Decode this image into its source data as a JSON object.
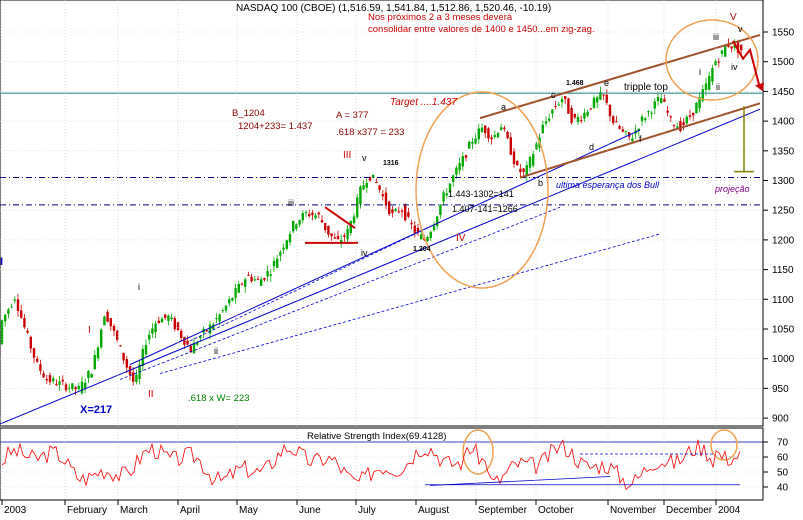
{
  "chart_data": [
    {
      "type": "candlestick",
      "title": "NASDAQ 100 (CBOE) (1,516.59, 1,541.84, 1,512.86, 1,520.46, -10.19)",
      "x_labels": [
        "2003",
        "February",
        "March",
        "April",
        "May",
        "June",
        "July",
        "August",
        "September",
        "October",
        "November",
        "December",
        "2004"
      ],
      "ylim": [
        860,
        1580
      ],
      "y_ticks": [
        900,
        950,
        1000,
        1050,
        1100,
        1150,
        1200,
        1250,
        1300,
        1350,
        1400,
        1450,
        1500,
        1550
      ],
      "path_anchors": [
        [
          0,
          990
        ],
        [
          4,
          1060
        ],
        [
          18,
          1105
        ],
        [
          28,
          1050
        ],
        [
          40,
          990
        ],
        [
          50,
          965
        ],
        [
          68,
          955
        ],
        [
          82,
          948
        ],
        [
          96,
          985
        ],
        [
          108,
          1080
        ],
        [
          118,
          1040
        ],
        [
          128,
          995
        ],
        [
          138,
          955
        ],
        [
          150,
          1035
        ],
        [
          160,
          1065
        ],
        [
          172,
          1070
        ],
        [
          184,
          1040
        ],
        [
          194,
          1015
        ],
        [
          202,
          1035
        ],
        [
          214,
          1055
        ],
        [
          226,
          1080
        ],
        [
          238,
          1110
        ],
        [
          250,
          1140
        ],
        [
          262,
          1130
        ],
        [
          274,
          1150
        ],
        [
          286,
          1190
        ],
        [
          298,
          1230
        ],
        [
          310,
          1245
        ],
        [
          322,
          1240
        ],
        [
          330,
          1215
        ],
        [
          340,
          1195
        ],
        [
          350,
          1210
        ],
        [
          358,
          1250
        ],
        [
          364,
          1285
        ],
        [
          372,
          1310
        ],
        [
          380,
          1295
        ],
        [
          388,
          1265
        ],
        [
          396,
          1240
        ],
        [
          404,
          1255
        ],
        [
          412,
          1230
        ],
        [
          420,
          1210
        ],
        [
          428,
          1200
        ],
        [
          436,
          1225
        ],
        [
          446,
          1270
        ],
        [
          456,
          1305
        ],
        [
          466,
          1335
        ],
        [
          476,
          1370
        ],
        [
          486,
          1390
        ],
        [
          496,
          1370
        ],
        [
          504,
          1395
        ],
        [
          512,
          1360
        ],
        [
          520,
          1320
        ],
        [
          528,
          1310
        ],
        [
          536,
          1345
        ],
        [
          546,
          1390
        ],
        [
          556,
          1420
        ],
        [
          566,
          1440
        ],
        [
          576,
          1400
        ],
        [
          586,
          1410
        ],
        [
          596,
          1430
        ],
        [
          606,
          1445
        ],
        [
          616,
          1400
        ],
        [
          626,
          1380
        ],
        [
          634,
          1370
        ],
        [
          644,
          1400
        ],
        [
          654,
          1420
        ],
        [
          664,
          1440
        ],
        [
          674,
          1400
        ],
        [
          684,
          1390
        ],
        [
          694,
          1410
        ],
        [
          704,
          1440
        ],
        [
          712,
          1470
        ],
        [
          718,
          1500
        ],
        [
          724,
          1510
        ],
        [
          730,
          1530
        ],
        [
          738,
          1525
        ],
        [
          742,
          1520
        ]
      ],
      "annotations": {
        "note_line1": "Nos próximos 2 a 3 meses deverá",
        "note_line2": "consolidar entre valores de 1400 e 1450...em zig-zag.",
        "b_label": "B_1204",
        "b_calc": "1204+233= 1.437",
        "a_label": "A = 377",
        "a_calc": ".618 x377 = 233",
        "target": "Target ....1.437",
        "triple_top": "tripple top",
        "top_1468": "1.468",
        "calc_141": "1.443-1302=141",
        "calc_1266": "1.407-141=1266",
        "bull_text": "ultima esperança dos Bull",
        "projecao": "projeção",
        "w_calc": ".618 x W= 223",
        "x_label": "X=217",
        "low_1204": "1.204",
        "high_1316": "1316",
        "wave_I": "I",
        "wave_II": "II",
        "wave_III": "III",
        "wave_IV": "IV",
        "wave_V": "V",
        "sub_i": "i",
        "sub_ii": "ii",
        "sub_iii": "iii",
        "sub_iv": "iv",
        "sub_v": "v",
        "abc_a": "a",
        "abc_b": "b",
        "abc_c": "c",
        "abc_d": "d",
        "abc_e": "e",
        "abc_f": "f"
      }
    },
    {
      "type": "line",
      "title": "Relative Strength Index(69.4128)",
      "ylim": [
        35,
        75
      ],
      "y_ticks": [
        40,
        50,
        60,
        70
      ],
      "reference_lines": [
        70
      ],
      "last_value": 69.4128
    }
  ],
  "colors": {
    "candle_up": "#00aa00",
    "candle_down": "#cc0000",
    "trend_blue": "#0000cc",
    "channel_brown": "#a0522d",
    "ellipse_orange": "#f0a050",
    "horizontal_teal": "#2f8f8f",
    "text_red": "#cc0000",
    "text_blue": "#0000cc",
    "text_purple": "#800080",
    "rsi_line": "#ff0000",
    "grid": "#c8c8c8"
  }
}
